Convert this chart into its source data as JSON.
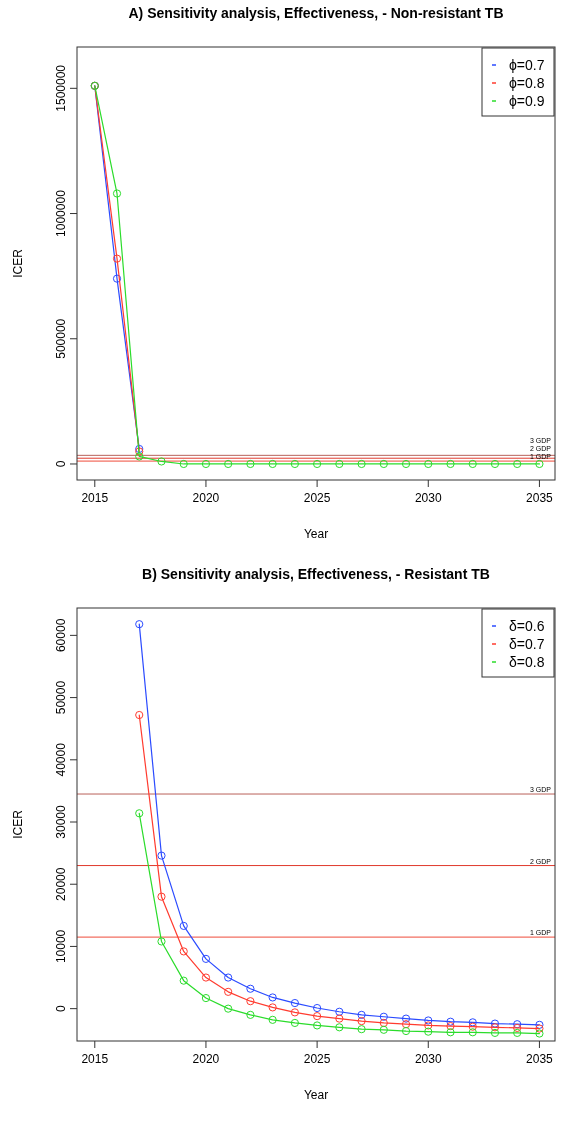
{
  "chart_data": [
    {
      "type": "line",
      "title": "A) Sensitivity analysis, Effectiveness, - Non-resistant TB",
      "xlabel": "Year",
      "ylabel": "ICER",
      "x": [
        2015,
        2016,
        2017,
        2018,
        2019,
        2020,
        2021,
        2022,
        2023,
        2024,
        2025,
        2026,
        2027,
        2028,
        2029,
        2030,
        2031,
        2032,
        2033,
        2034,
        2035
      ],
      "xlim": [
        2014.2,
        2035.7
      ],
      "xticks": [
        2015,
        2020,
        2025,
        2030,
        2035
      ],
      "ylim": [
        -64000,
        1665000
      ],
      "yticks": [
        0,
        500000,
        1000000,
        1500000
      ],
      "legend": "top right",
      "marker": "circle",
      "line_style": "solid",
      "series": [
        {
          "name": "ϕ=0.7",
          "color": "#2b4bff",
          "values": [
            1510000,
            740000,
            60000,
            null,
            null,
            null,
            null,
            null,
            null,
            null,
            null,
            null,
            null,
            null,
            null,
            null,
            null,
            null,
            null,
            null,
            null
          ]
        },
        {
          "name": "ϕ=0.8",
          "color": "#ff3b2f",
          "values": [
            1510000,
            820000,
            50000,
            null,
            null,
            null,
            null,
            null,
            null,
            null,
            null,
            null,
            null,
            null,
            null,
            null,
            null,
            null,
            null,
            null,
            null
          ]
        },
        {
          "name": "ϕ=0.9",
          "color": "#2bdc2b",
          "values": [
            1510000,
            1080000,
            30000,
            10000,
            0,
            0,
            0,
            0,
            0,
            0,
            0,
            0,
            0,
            0,
            0,
            0,
            0,
            0,
            0,
            0,
            0
          ]
        }
      ],
      "ref_lines": [
        {
          "axis": "y",
          "value": 34500,
          "label": "3 GDP",
          "color": "#b9615a"
        },
        {
          "axis": "y",
          "value": 23000,
          "label": "2 GDP",
          "color": "#e0392c"
        },
        {
          "axis": "y",
          "value": 11500,
          "label": "1 GDP",
          "color": "#ef4a3a"
        }
      ]
    },
    {
      "type": "line",
      "title": "B) Sensitivity analysis, Effectiveness, - Resistant TB",
      "xlabel": "Year",
      "ylabel": "ICER",
      "x": [
        2017,
        2018,
        2019,
        2020,
        2021,
        2022,
        2023,
        2024,
        2025,
        2026,
        2027,
        2028,
        2029,
        2030,
        2031,
        2032,
        2033,
        2034,
        2035
      ],
      "xlim": [
        2014.2,
        2035.7
      ],
      "xticks": [
        2015,
        2020,
        2025,
        2030,
        2035
      ],
      "ylim": [
        -5200,
        64400
      ],
      "yticks": [
        0,
        10000,
        20000,
        30000,
        40000,
        50000,
        60000
      ],
      "legend": "top right",
      "marker": "circle",
      "line_style": "solid",
      "series": [
        {
          "name": "δ=0.6",
          "color": "#2b4bff",
          "values": [
            61800,
            24600,
            13300,
            8000,
            5000,
            3200,
            1800,
            900,
            100,
            -500,
            -1000,
            -1300,
            -1600,
            -1900,
            -2100,
            -2200,
            -2400,
            -2500,
            -2600
          ]
        },
        {
          "name": "δ=0.7",
          "color": "#ff3b2f",
          "values": [
            47200,
            18000,
            9200,
            5000,
            2700,
            1200,
            200,
            -600,
            -1200,
            -1600,
            -2000,
            -2300,
            -2500,
            -2700,
            -2800,
            -2900,
            -3000,
            -3100,
            -3200
          ]
        },
        {
          "name": "δ=0.8",
          "color": "#2bdc2b",
          "values": [
            31400,
            10800,
            4500,
            1700,
            0,
            -1000,
            -1800,
            -2300,
            -2700,
            -3000,
            -3300,
            -3400,
            -3600,
            -3700,
            -3800,
            -3800,
            -3900,
            -3900,
            -4000
          ]
        }
      ],
      "ref_lines": [
        {
          "axis": "y",
          "value": 34500,
          "label": "3 GDP",
          "color": "#b9615a"
        },
        {
          "axis": "y",
          "value": 23000,
          "label": "2 GDP",
          "color": "#e0392c"
        },
        {
          "axis": "y",
          "value": 11500,
          "label": "1 GDP",
          "color": "#ef4a3a"
        }
      ]
    }
  ]
}
